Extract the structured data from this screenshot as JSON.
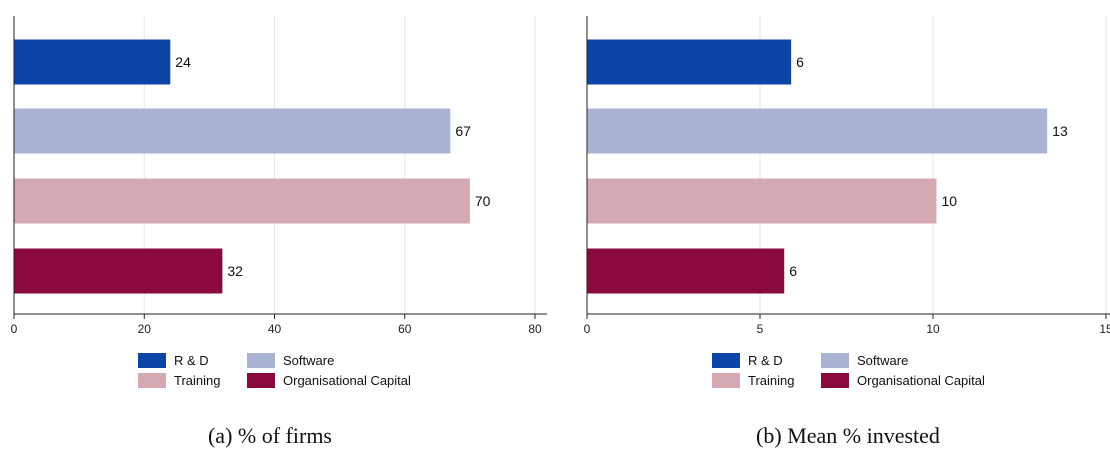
{
  "chart_data": [
    {
      "type": "bar",
      "orientation": "horizontal",
      "caption": "(a) % of firms",
      "categories": [
        "R & D",
        "Software",
        "Training",
        "Organisational Capital"
      ],
      "values": [
        24,
        67,
        70,
        32
      ],
      "data_labels": [
        "24",
        "67",
        "70",
        "32"
      ],
      "xlim": [
        0,
        80
      ],
      "xticks": [
        0,
        20,
        40,
        60,
        80
      ],
      "grid": true,
      "legend": "bottom",
      "colors": [
        "#0b45a5",
        "#aab3d4",
        "#d4a9b1",
        "#8b0a3e"
      ]
    },
    {
      "type": "bar",
      "orientation": "horizontal",
      "caption": "(b) Mean % invested",
      "categories": [
        "R & D",
        "Software",
        "Training",
        "Organisational Capital"
      ],
      "values": [
        5.9,
        13.3,
        10.1,
        5.7
      ],
      "data_labels": [
        "6",
        "13",
        "10",
        "6"
      ],
      "xlim": [
        0,
        15
      ],
      "xticks": [
        0,
        5,
        10,
        15
      ],
      "grid": true,
      "legend": "bottom",
      "colors": [
        "#0b45a5",
        "#aab3d4",
        "#d4a9b1",
        "#8b0a3e"
      ]
    }
  ]
}
